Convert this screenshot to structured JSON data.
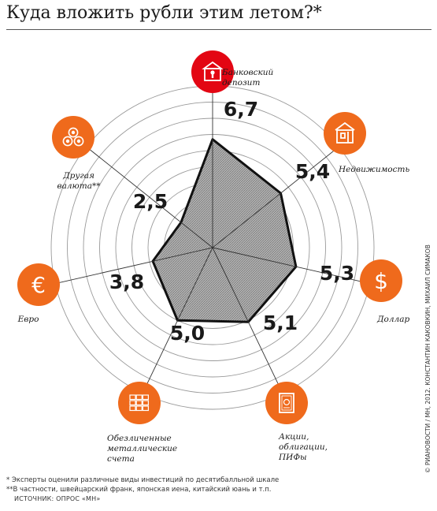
{
  "title": "Куда вложить рубли этим летом?*",
  "colors": {
    "accent": "#e30613",
    "orange": "#ef6a1c",
    "fill": "#a8a8a8",
    "grid": "#9a9a9a"
  },
  "chart_data": {
    "type": "radar",
    "scale": [
      0,
      10
    ],
    "rings": 10,
    "axes": [
      {
        "label_lines": [
          "Банковский",
          "депозит"
        ],
        "value": 6.7,
        "value_label": "6,7",
        "icon": "bank-vault-icon",
        "icon_color": "#e30613"
      },
      {
        "label_lines": [
          "Недвижимость"
        ],
        "value": 5.4,
        "value_label": "5,4",
        "icon": "building-icon",
        "icon_color": "#ef6a1c"
      },
      {
        "label_lines": [
          "Доллар"
        ],
        "value": 5.3,
        "value_label": "5,3",
        "icon": "dollar-icon",
        "icon_color": "#ef6a1c"
      },
      {
        "label_lines": [
          "Акции,",
          "облигации,",
          "ПИФы"
        ],
        "value": 5.1,
        "value_label": "5,1",
        "icon": "certificate-icon",
        "icon_color": "#ef6a1c"
      },
      {
        "label_lines": [
          "Обезличенные",
          "металлические",
          "счета"
        ],
        "value": 5.0,
        "value_label": "5,0",
        "icon": "gold-bars-icon",
        "icon_color": "#ef6a1c"
      },
      {
        "label_lines": [
          "Евро"
        ],
        "value": 3.8,
        "value_label": "3,8",
        "icon": "euro-icon",
        "icon_color": "#ef6a1c"
      },
      {
        "label_lines": [
          "Другая",
          "валюта**"
        ],
        "value": 2.5,
        "value_label": "2,5",
        "icon": "coins-icon",
        "icon_color": "#ef6a1c"
      }
    ]
  },
  "footnotes": [
    "*  Эксперты оценили различные виды инвестиций по десятибалльной шкале",
    "**В частности, швейцарский франк, японская иена, китайский юань и т.п."
  ],
  "source": "источник: опрос «мн»",
  "credit": "© РИАНОВОСТИ / МН, 2012. КОНСТАНТИН КАКОВКИН, МИХАИЛ СИМАКОВ"
}
